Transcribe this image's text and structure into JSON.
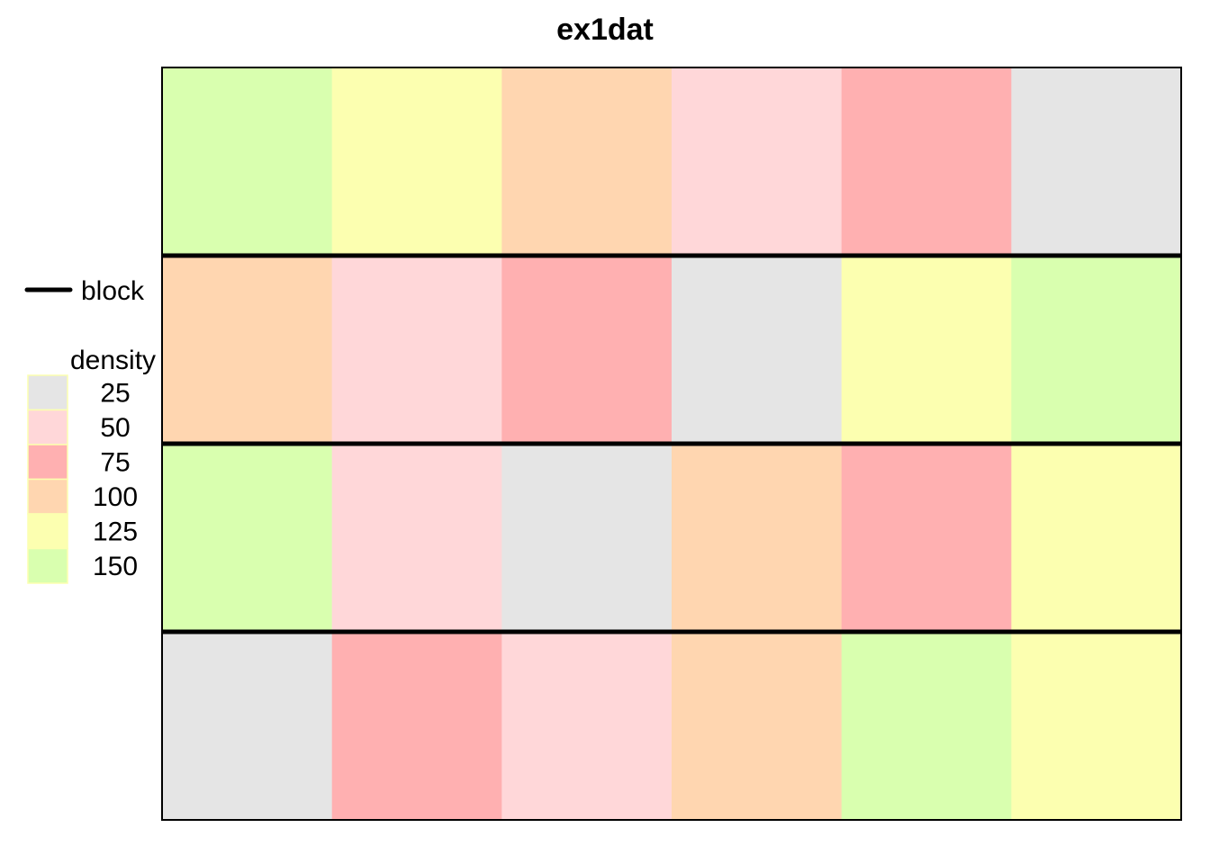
{
  "chart_data": {
    "type": "heatmap",
    "title": "ex1dat",
    "rows": 4,
    "cols": 6,
    "value_grid": [
      [
        150,
        125,
        100,
        50,
        75,
        25
      ],
      [
        100,
        50,
        75,
        25,
        125,
        150
      ],
      [
        150,
        50,
        25,
        100,
        75,
        125
      ],
      [
        25,
        75,
        50,
        100,
        150,
        125
      ]
    ],
    "block_boundaries_after_rows": [
      1,
      2,
      3
    ],
    "legend": {
      "line_label": "block",
      "fill_title": "density",
      "levels": [
        {
          "value": "25",
          "color": "#e5e5e5"
        },
        {
          "value": "50",
          "color": "#ffd7d9"
        },
        {
          "value": "75",
          "color": "#ffb0b1"
        },
        {
          "value": "100",
          "color": "#ffd6b0"
        },
        {
          "value": "125",
          "color": "#fcffb0"
        },
        {
          "value": "150",
          "color": "#d9ffaf"
        }
      ]
    },
    "colors": {
      "25": "#e5e5e5",
      "50": "#ffd7d9",
      "75": "#ffb0b1",
      "100": "#ffd6b0",
      "125": "#fcffb0",
      "150": "#d9ffaf"
    }
  }
}
